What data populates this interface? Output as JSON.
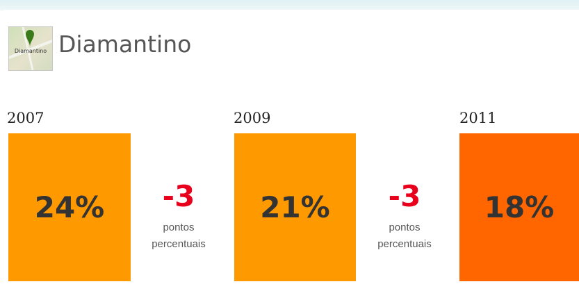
{
  "header": {
    "title": "Diamantino",
    "icon_label": "Diamantino"
  },
  "periods": [
    {
      "year": "2007",
      "value": "24%",
      "color": "#ff9900"
    },
    {
      "year": "2009",
      "value": "21%",
      "color": "#ff9900"
    },
    {
      "year": "2011",
      "value": "18%",
      "color": "#ff6600"
    }
  ],
  "changes": [
    {
      "delta": "-3",
      "unit": "pontos percentuais"
    },
    {
      "delta": "-3",
      "unit": "pontos percentuais"
    }
  ]
}
